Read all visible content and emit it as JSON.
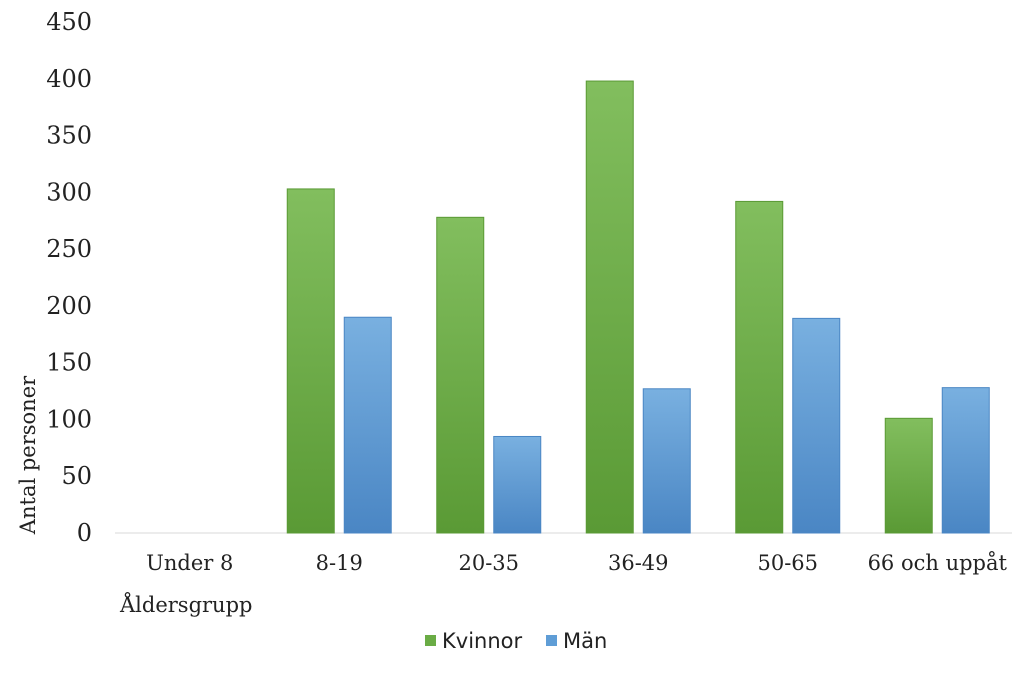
{
  "chart_data": {
    "type": "bar",
    "title": "",
    "xlabel": "Åldersgrupp",
    "ylabel": "Antal personer",
    "ylim": [
      0,
      450
    ],
    "yticks": [
      0,
      50,
      100,
      150,
      200,
      250,
      300,
      350,
      400,
      450
    ],
    "grid": false,
    "legend_position": "bottom",
    "categories": [
      "Under 8",
      "8-19",
      "20-35",
      "36-49",
      "50-65",
      "66 och uppåt"
    ],
    "series": [
      {
        "name": "Kvinnor",
        "color": "#6aac45",
        "color_top": "#82be5e",
        "color_bottom": "#5a9a35",
        "values": [
          0,
          303,
          278,
          398,
          292,
          101
        ]
      },
      {
        "name": "Män",
        "color": "#5f9dd6",
        "color_top": "#79b0e0",
        "color_bottom": "#4a86c4",
        "values": [
          0,
          190,
          85,
          127,
          189,
          128
        ]
      }
    ]
  }
}
